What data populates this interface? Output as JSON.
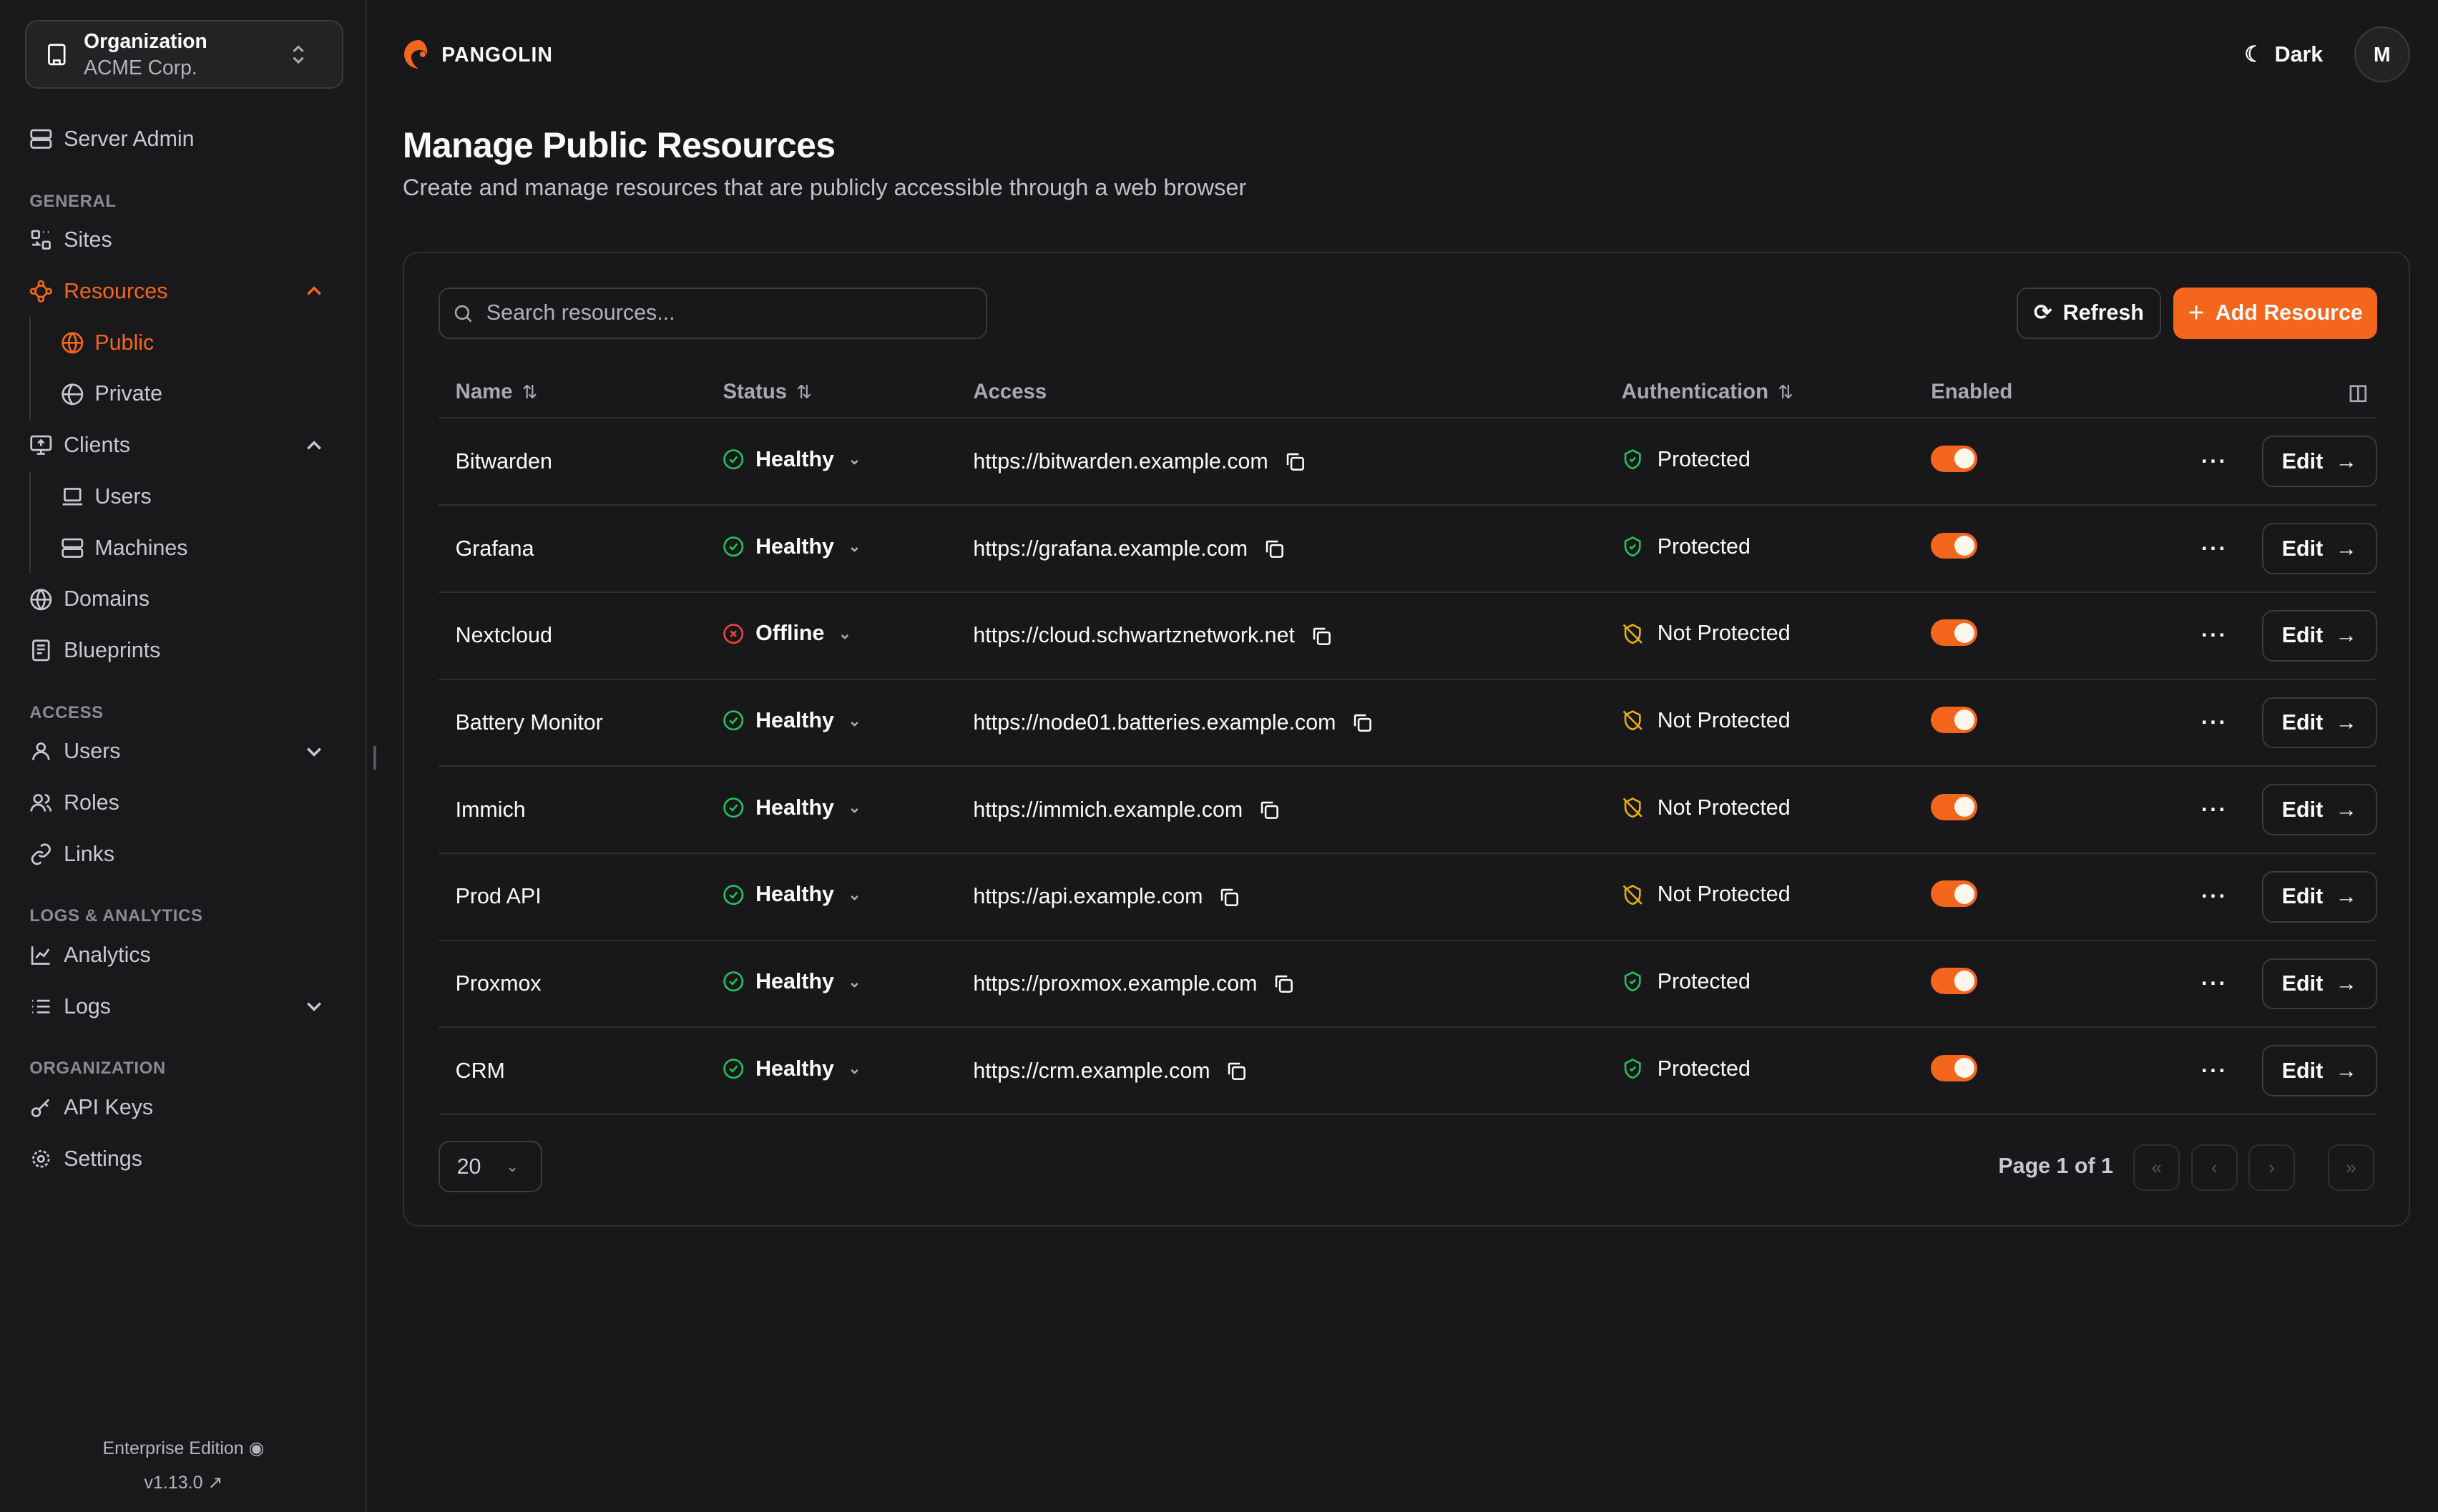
{
  "sidebar": {
    "org_label": "Organization",
    "org_name": "ACME Corp.",
    "server_admin": "Server Admin",
    "sections": {
      "general": "GENERAL",
      "access": "ACCESS",
      "logs": "LOGS & ANALYTICS",
      "organization": "ORGANIZATION"
    },
    "items": {
      "sites": "Sites",
      "resources": "Resources",
      "public": "Public",
      "private": "Private",
      "clients": "Clients",
      "users_c": "Users",
      "machines": "Machines",
      "domains": "Domains",
      "blueprints": "Blueprints",
      "users": "Users",
      "roles": "Roles",
      "links": "Links",
      "analytics": "Analytics",
      "logs": "Logs",
      "api_keys": "API Keys",
      "settings": "Settings"
    },
    "edition": "Enterprise Edition",
    "version": "v1.13.0"
  },
  "header": {
    "brand": "PANGOLIN",
    "theme": "Dark",
    "avatar": "M"
  },
  "page": {
    "title": "Manage Public Resources",
    "subtitle": "Create and manage resources that are publicly accessible through a web browser"
  },
  "toolbar": {
    "search_placeholder": "Search resources...",
    "refresh": "Refresh",
    "add": "Add Resource"
  },
  "table": {
    "columns": {
      "name": "Name",
      "status": "Status",
      "access": "Access",
      "auth": "Authentication",
      "enabled": "Enabled"
    },
    "edit": "Edit",
    "rows": [
      {
        "name": "Bitwarden",
        "status": "Healthy",
        "access": "https://bitwarden.example.com",
        "auth": "Protected",
        "enabled": true
      },
      {
        "name": "Grafana",
        "status": "Healthy",
        "access": "https://grafana.example.com",
        "auth": "Protected",
        "enabled": true
      },
      {
        "name": "Nextcloud",
        "status": "Offline",
        "access": "https://cloud.schwartznetwork.net",
        "auth": "Not Protected",
        "enabled": true
      },
      {
        "name": "Battery Monitor",
        "status": "Healthy",
        "access": "https://node01.batteries.example.com",
        "auth": "Not Protected",
        "enabled": true
      },
      {
        "name": "Immich",
        "status": "Healthy",
        "access": "https://immich.example.com",
        "auth": "Not Protected",
        "enabled": true
      },
      {
        "name": "Prod API",
        "status": "Healthy",
        "access": "https://api.example.com",
        "auth": "Not Protected",
        "enabled": true
      },
      {
        "name": "Proxmox",
        "status": "Healthy",
        "access": "https://proxmox.example.com",
        "auth": "Protected",
        "enabled": true
      },
      {
        "name": "CRM",
        "status": "Healthy",
        "access": "https://crm.example.com",
        "auth": "Protected",
        "enabled": true
      }
    ]
  },
  "pagination": {
    "page_size": "20",
    "page_text": "Page 1 of 1"
  },
  "colors": {
    "accent": "#f4661b",
    "healthy": "#22c55e",
    "offline": "#ef4444",
    "warning": "#eab308",
    "background": "#18181b"
  }
}
